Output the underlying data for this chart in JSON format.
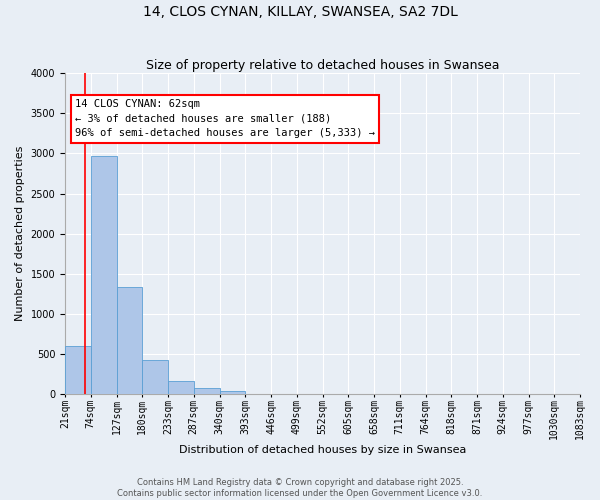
{
  "title": "14, CLOS CYNAN, KILLAY, SWANSEA, SA2 7DL",
  "subtitle": "Size of property relative to detached houses in Swansea",
  "xlabel": "Distribution of detached houses by size in Swansea",
  "ylabel": "Number of detached properties",
  "bin_labels": [
    "21sqm",
    "74sqm",
    "127sqm",
    "180sqm",
    "233sqm",
    "287sqm",
    "340sqm",
    "393sqm",
    "446sqm",
    "499sqm",
    "552sqm",
    "605sqm",
    "658sqm",
    "711sqm",
    "764sqm",
    "818sqm",
    "871sqm",
    "924sqm",
    "977sqm",
    "1030sqm",
    "1083sqm"
  ],
  "bar_values": [
    600,
    2970,
    1340,
    430,
    165,
    75,
    45,
    0,
    0,
    0,
    0,
    0,
    0,
    0,
    0,
    0,
    0,
    0,
    0,
    0
  ],
  "bar_color": "#aec6e8",
  "bar_edge_color": "#5a9fd4",
  "ylim": [
    0,
    4000
  ],
  "yticks": [
    0,
    500,
    1000,
    1500,
    2000,
    2500,
    3000,
    3500,
    4000
  ],
  "property_value": 62,
  "annotation_title": "14 CLOS CYNAN: 62sqm",
  "annotation_line1": "← 3% of detached houses are smaller (188)",
  "annotation_line2": "96% of semi-detached houses are larger (5,333) →",
  "footer1": "Contains HM Land Registry data © Crown copyright and database right 2025.",
  "footer2": "Contains public sector information licensed under the Open Government Licence v3.0.",
  "background_color": "#e8eef5",
  "grid_color": "#ffffff",
  "title_fontsize": 10,
  "subtitle_fontsize": 9,
  "tick_fontsize": 7,
  "ylabel_fontsize": 8,
  "xlabel_fontsize": 8,
  "footer_fontsize": 6,
  "annotation_fontsize": 7.5
}
